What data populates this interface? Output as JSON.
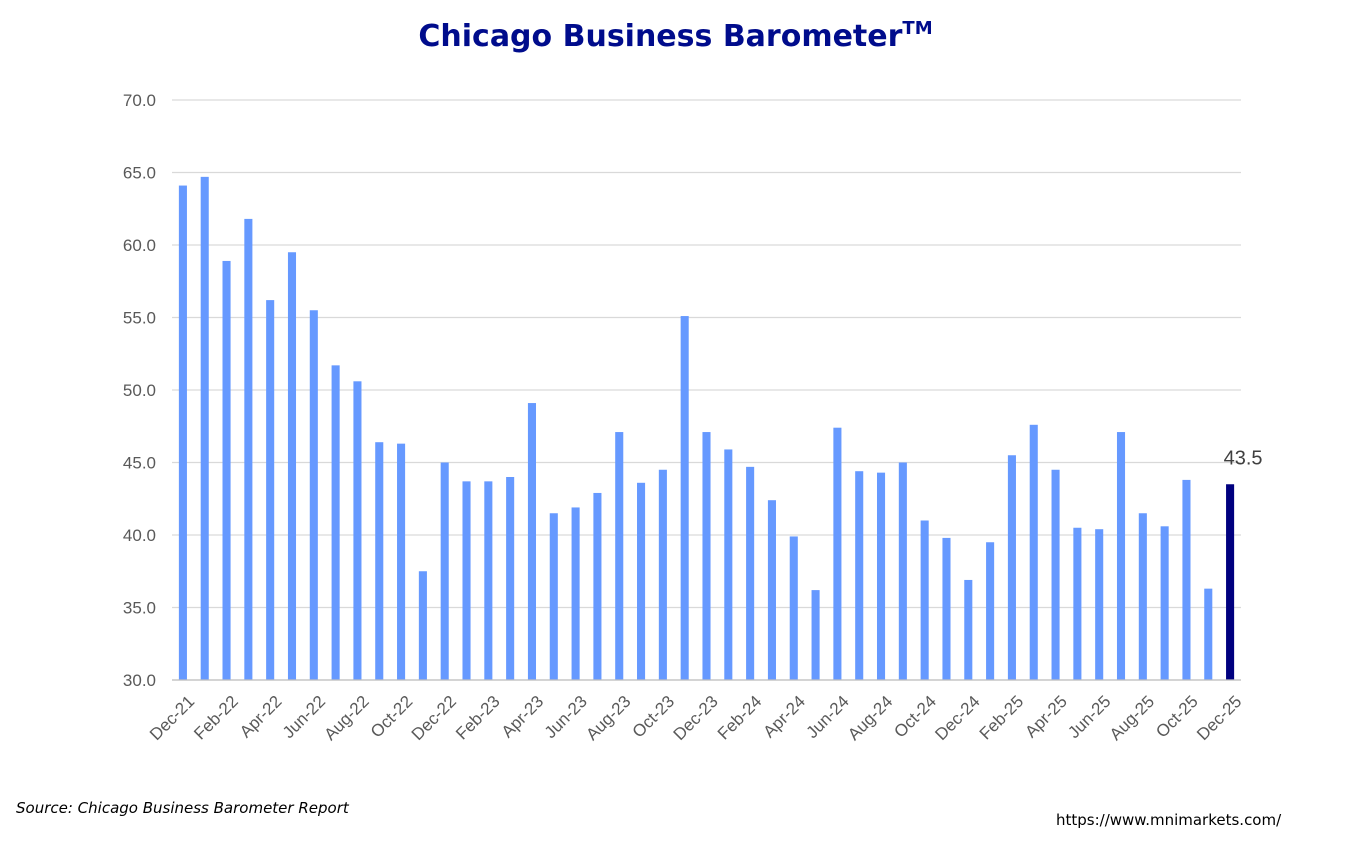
{
  "chart_data": {
    "type": "bar",
    "title": "Chicago Business Barometer",
    "title_mark": "TM",
    "ylim": [
      30,
      70
    ],
    "yticks": [
      "30.0",
      "35.0",
      "40.0",
      "45.0",
      "50.0",
      "55.0",
      "60.0",
      "65.0",
      "70.0"
    ],
    "grid": true,
    "bar_color": "#6699ff",
    "highlight_color": "#00007f",
    "highlight_label": "43.5",
    "x_tick_labels": [
      "Dec-21",
      "Feb-22",
      "Apr-22",
      "Jun-22",
      "Aug-22",
      "Oct-22",
      "Dec-22",
      "Feb-23",
      "Apr-23",
      "Jun-23",
      "Aug-23",
      "Oct-23",
      "Dec-23",
      "Feb-24",
      "Apr-24",
      "Jun-24",
      "Aug-24",
      "Oct-24",
      "Dec-24",
      "Feb-25",
      "Apr-25",
      "Jun-25",
      "Aug-25",
      "Oct-25",
      "Dec-25"
    ],
    "categories": [
      "Dec-21",
      "Jan-22",
      "Feb-22",
      "Mar-22",
      "Apr-22",
      "May-22",
      "Jun-22",
      "Jul-22",
      "Aug-22",
      "Sep-22",
      "Oct-22",
      "Nov-22",
      "Dec-22",
      "Jan-23",
      "Feb-23",
      "Mar-23",
      "Apr-23",
      "May-23",
      "Jun-23",
      "Jul-23",
      "Aug-23",
      "Sep-23",
      "Oct-23",
      "Nov-23",
      "Dec-23",
      "Jan-24",
      "Feb-24",
      "Mar-24",
      "Apr-24",
      "May-24",
      "Jun-24",
      "Jul-24",
      "Aug-24",
      "Sep-24",
      "Oct-24",
      "Nov-24",
      "Dec-24",
      "Jan-25",
      "Feb-25",
      "Mar-25",
      "Apr-25",
      "May-25",
      "Jun-25",
      "Jul-25",
      "Aug-25",
      "Sep-25",
      "Oct-25",
      "Nov-25",
      "Dec-25"
    ],
    "values": [
      64.1,
      64.7,
      58.9,
      61.8,
      56.2,
      59.5,
      55.5,
      51.7,
      50.6,
      46.4,
      46.3,
      37.5,
      45.0,
      43.7,
      43.7,
      44.0,
      49.1,
      41.5,
      41.9,
      42.9,
      47.1,
      43.6,
      44.5,
      55.1,
      47.1,
      45.9,
      44.7,
      42.4,
      39.9,
      36.2,
      47.4,
      44.4,
      44.3,
      45.0,
      41.0,
      39.8,
      36.9,
      39.5,
      45.5,
      47.6,
      44.5,
      40.5,
      40.4,
      47.1,
      41.5,
      40.6,
      43.8,
      36.3,
      43.5
    ]
  },
  "footer": {
    "source": "Source: Chicago Business Barometer Report",
    "url": "https://www.mnimarkets.com/"
  }
}
